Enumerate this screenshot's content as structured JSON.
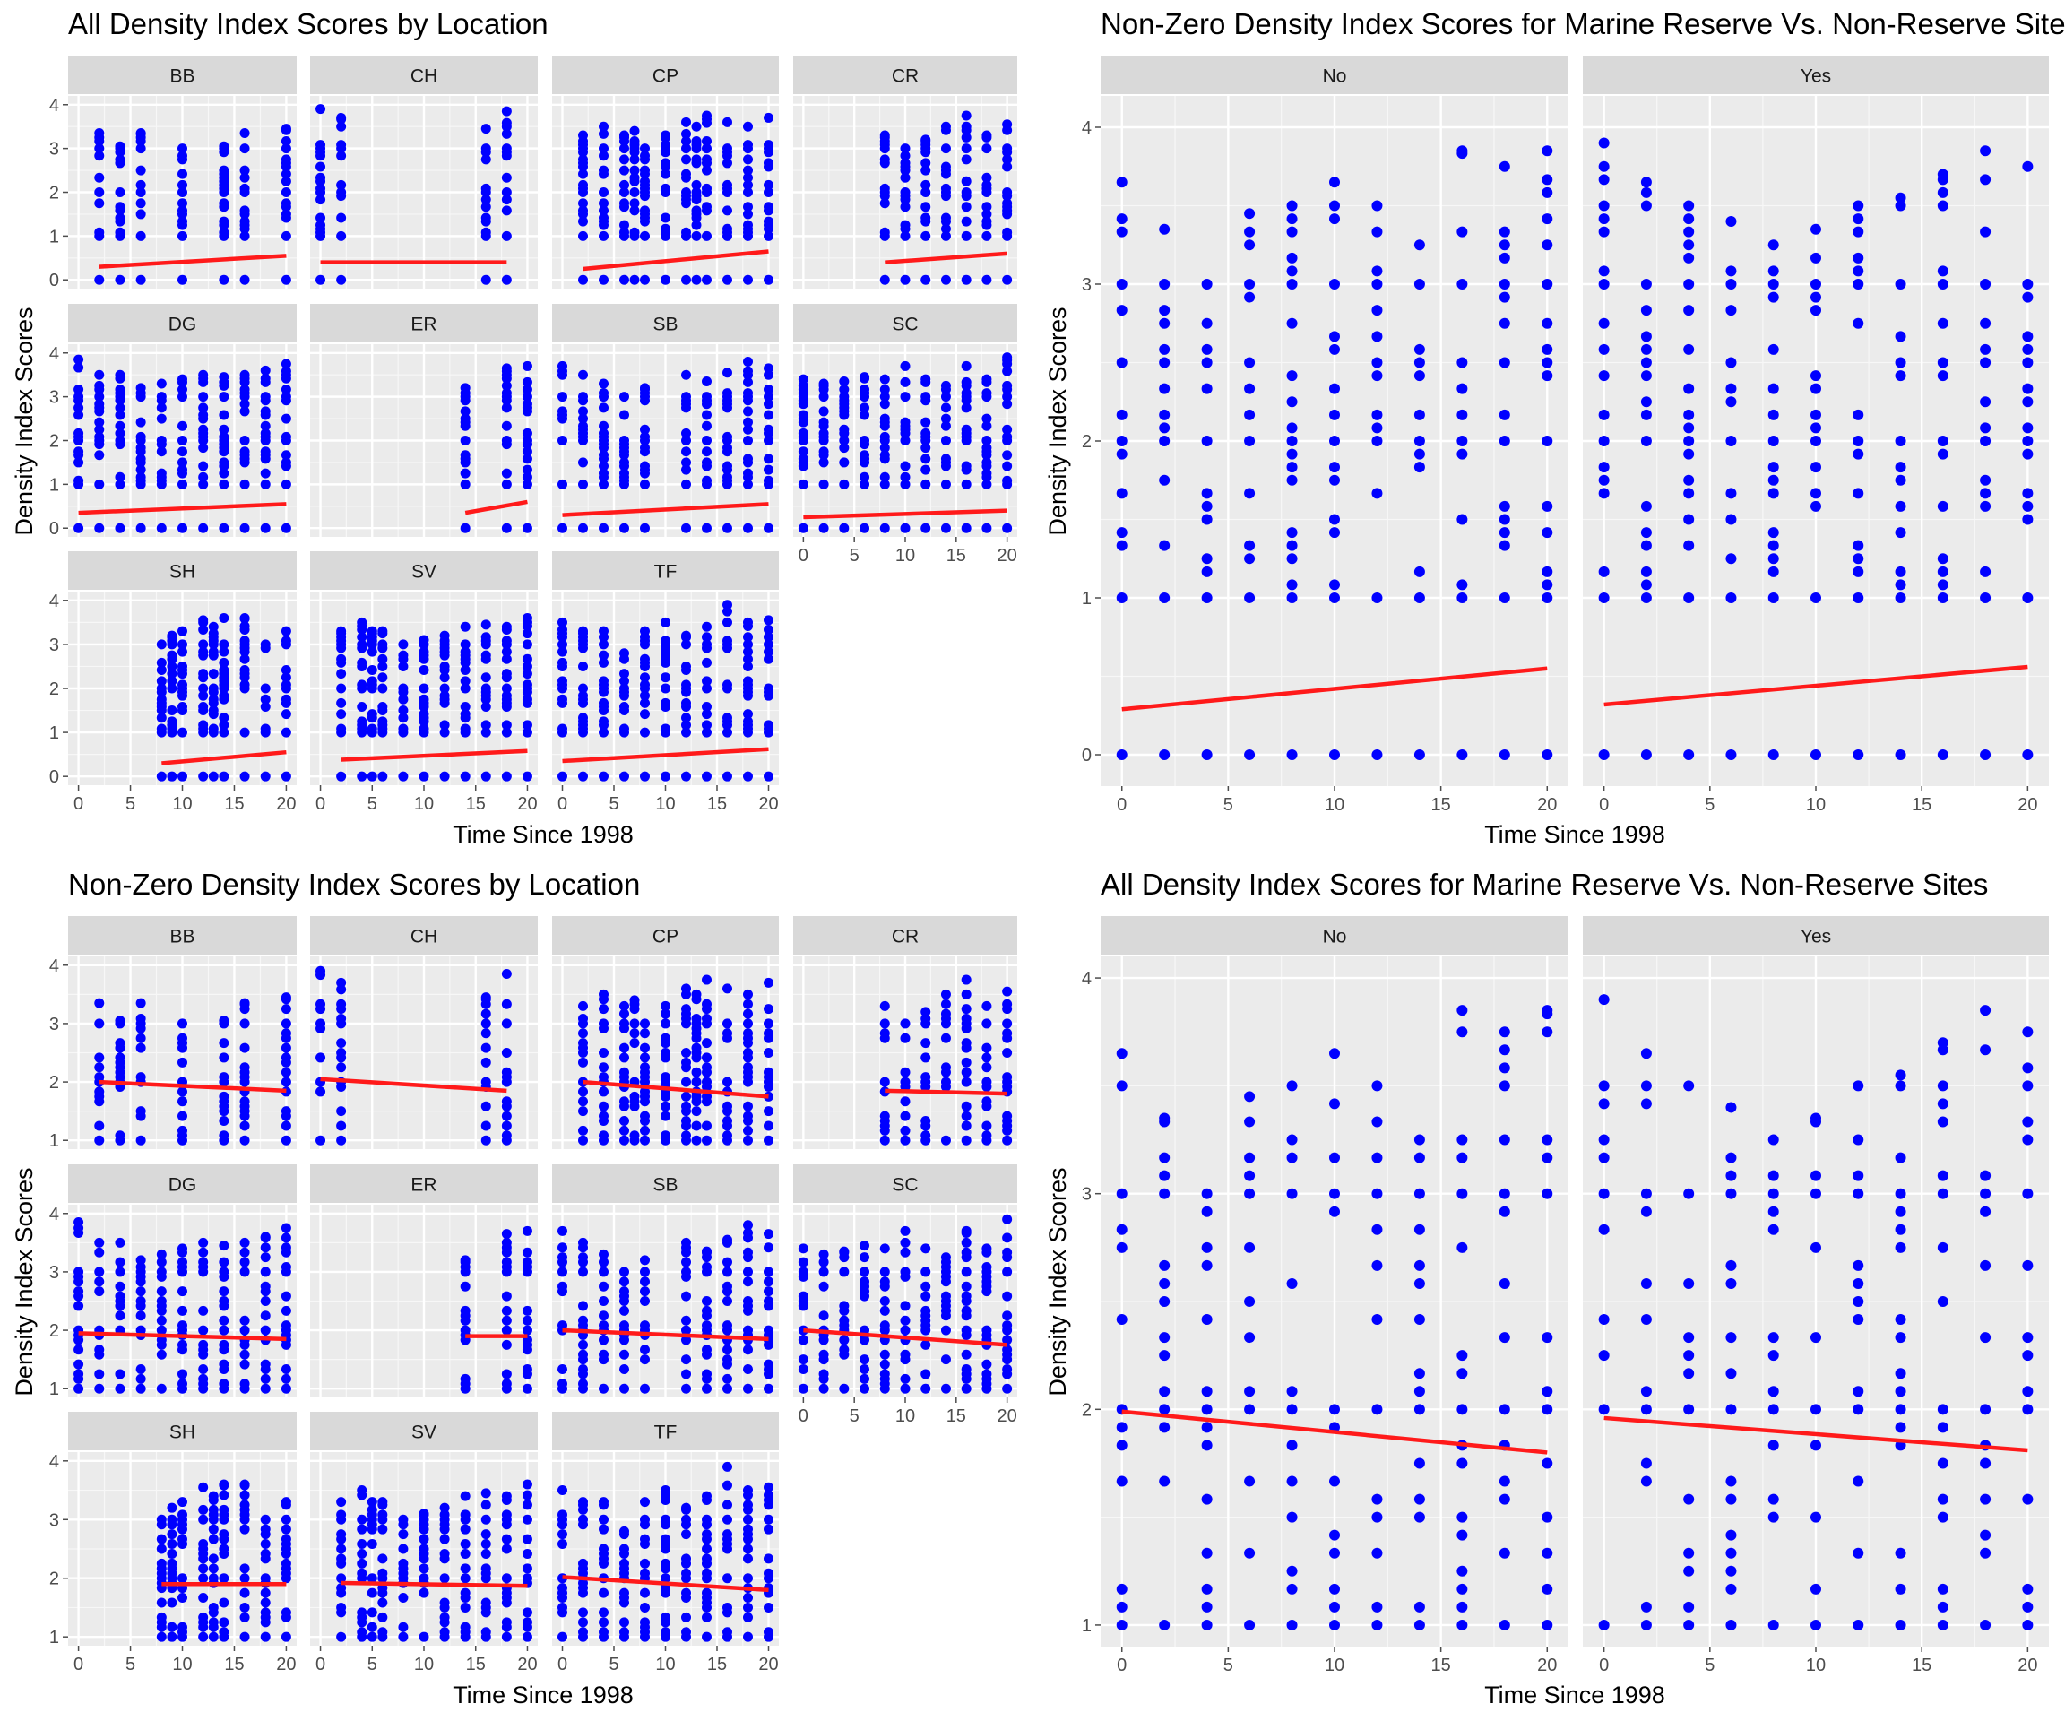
{
  "colors": {
    "panel_bg": "#ebebeb",
    "strip_bg": "#d9d9d9",
    "grid_major": "#ffffff",
    "point": "#0000ff",
    "trend": "#ff1a1a",
    "tick": "#4d4d4d"
  },
  "chart_data": [
    {
      "type": "scatter",
      "title": "All Density Index Scores by Location",
      "xlabel": "Time Since 1998",
      "ylabel": "Density Index Scores",
      "xlim": [
        -1,
        21
      ],
      "ylim": [
        -0.2,
        4.2
      ],
      "x_ticks": [
        0,
        5,
        10,
        15,
        20
      ],
      "y_ticks": [
        0,
        1,
        2,
        3,
        4
      ],
      "facets": [
        {
          "name": "BB",
          "times": [
            2,
            4,
            6,
            10,
            14,
            16,
            20
          ],
          "ymax": [
            3.35,
            3.05,
            3.35,
            3.0,
            3.05,
            3.35,
            3.45
          ],
          "ymin": 1.0,
          "trend": [
            [
              2,
              0.3
            ],
            [
              20,
              0.55
            ]
          ]
        },
        {
          "name": "CH",
          "times": [
            0,
            2,
            16,
            18
          ],
          "ymax": [
            3.9,
            3.7,
            3.45,
            3.85
          ],
          "ymin": 1.0,
          "trend": [
            [
              0,
              0.4
            ],
            [
              18,
              0.4
            ]
          ]
        },
        {
          "name": "CP",
          "times": [
            2,
            4,
            6,
            7,
            8,
            10,
            12,
            13,
            14,
            16,
            18,
            20
          ],
          "ymax": [
            3.3,
            3.5,
            3.3,
            3.4,
            3.0,
            3.3,
            3.6,
            3.5,
            3.75,
            3.6,
            3.5,
            3.7
          ],
          "ymin": 1.0,
          "trend": [
            [
              2,
              0.25
            ],
            [
              20,
              0.65
            ]
          ]
        },
        {
          "name": "CR",
          "times": [
            8,
            10,
            12,
            14,
            16,
            18,
            20
          ],
          "ymax": [
            3.3,
            3.0,
            3.2,
            3.5,
            3.75,
            3.3,
            3.55
          ],
          "ymin": 1.0,
          "trend": [
            [
              8,
              0.4
            ],
            [
              20,
              0.6
            ]
          ]
        },
        {
          "name": "DG",
          "times": [
            0,
            2,
            4,
            6,
            8,
            10,
            12,
            14,
            16,
            18,
            20
          ],
          "ymax": [
            3.85,
            3.5,
            3.5,
            3.2,
            3.3,
            3.4,
            3.5,
            3.45,
            3.5,
            3.6,
            3.75
          ],
          "ymin": 1.0,
          "trend": [
            [
              0,
              0.35
            ],
            [
              20,
              0.55
            ]
          ]
        },
        {
          "name": "ER",
          "times": [
            14,
            18,
            20
          ],
          "ymax": [
            3.2,
            3.65,
            3.7
          ],
          "ymin": 1.0,
          "trend": [
            [
              14,
              0.35
            ],
            [
              20,
              0.6
            ]
          ]
        },
        {
          "name": "SB",
          "times": [
            0,
            2,
            4,
            6,
            8,
            12,
            14,
            16,
            18,
            20
          ],
          "ymax": [
            3.7,
            3.5,
            3.3,
            3.0,
            3.2,
            3.5,
            3.35,
            3.55,
            3.8,
            3.65
          ],
          "ymin": 1.0,
          "trend": [
            [
              0,
              0.3
            ],
            [
              20,
              0.55
            ]
          ]
        },
        {
          "name": "SC",
          "times": [
            0,
            2,
            4,
            6,
            8,
            10,
            12,
            14,
            16,
            18,
            20
          ],
          "ymax": [
            3.4,
            3.3,
            3.35,
            3.45,
            3.4,
            3.7,
            3.4,
            3.25,
            3.7,
            3.4,
            3.9
          ],
          "ymin": 1.0,
          "trend": [
            [
              0,
              0.25
            ],
            [
              20,
              0.4
            ]
          ]
        },
        {
          "name": "SH",
          "times": [
            8,
            9,
            10,
            12,
            13,
            14,
            16,
            18,
            20
          ],
          "ymax": [
            3.0,
            3.2,
            3.3,
            3.55,
            3.4,
            3.6,
            3.6,
            3.0,
            3.3
          ],
          "ymin": 1.0,
          "trend": [
            [
              8,
              0.3
            ],
            [
              20,
              0.55
            ]
          ]
        },
        {
          "name": "SV",
          "times": [
            2,
            4,
            5,
            6,
            8,
            10,
            12,
            14,
            16,
            18,
            20
          ],
          "ymax": [
            3.3,
            3.5,
            3.3,
            3.3,
            3.0,
            3.1,
            3.2,
            3.4,
            3.45,
            3.4,
            3.6
          ],
          "ymin": 1.0,
          "trend": [
            [
              2,
              0.38
            ],
            [
              20,
              0.58
            ]
          ]
        },
        {
          "name": "TF",
          "times": [
            0,
            2,
            4,
            6,
            8,
            10,
            12,
            14,
            16,
            18,
            20
          ],
          "ymax": [
            3.5,
            3.3,
            3.3,
            2.8,
            3.3,
            3.5,
            3.2,
            3.4,
            3.9,
            3.5,
            3.55
          ],
          "ymin": 1.0,
          "trend": [
            [
              0,
              0.35
            ],
            [
              20,
              0.62
            ]
          ]
        }
      ]
    },
    {
      "type": "scatter",
      "title": "Non-Zero Density Index Scores for Marine Reserve Vs. Non-Reserve Sites",
      "xlabel": "Time Since 1998",
      "ylabel": "Density Index Scores",
      "xlim": [
        -1,
        21
      ],
      "ylim": [
        -0.2,
        4.2
      ],
      "x_ticks": [
        0,
        5,
        10,
        15,
        20
      ],
      "y_ticks": [
        0,
        1,
        2,
        3,
        4
      ],
      "facets": [
        {
          "name": "No",
          "times": [
            0,
            2,
            4,
            6,
            8,
            10,
            12,
            14,
            16,
            18,
            20
          ],
          "ymax": [
            3.65,
            3.35,
            3.0,
            3.45,
            3.5,
            3.65,
            3.5,
            3.25,
            3.85,
            3.75,
            3.85
          ],
          "ymin": 1.0,
          "trend": [
            [
              0,
              0.29
            ],
            [
              20,
              0.55
            ]
          ]
        },
        {
          "name": "Yes",
          "times": [
            0,
            2,
            4,
            6,
            8,
            10,
            12,
            14,
            16,
            18,
            20
          ],
          "ymax": [
            3.9,
            3.65,
            3.5,
            3.4,
            3.25,
            3.35,
            3.5,
            3.55,
            3.7,
            3.85,
            3.75
          ],
          "ymin": 1.0,
          "trend": [
            [
              0,
              0.32
            ],
            [
              20,
              0.56
            ]
          ]
        }
      ]
    },
    {
      "type": "scatter",
      "title": "Non-Zero Density Index Scores by Location",
      "xlabel": "Time Since 1998",
      "ylabel": "Density Index Scores",
      "xlim": [
        -1,
        21
      ],
      "ylim": [
        0.85,
        4.15
      ],
      "x_ticks": [
        0,
        5,
        10,
        15,
        20
      ],
      "y_ticks": [
        1,
        2,
        3,
        4
      ],
      "facets": [
        {
          "name": "BB",
          "times": [
            2,
            4,
            6,
            10,
            14,
            16,
            20
          ],
          "ymax": [
            3.35,
            3.05,
            3.35,
            3.0,
            3.05,
            3.35,
            3.45
          ],
          "ymin": 1.0,
          "trend": [
            [
              2,
              2.0
            ],
            [
              20,
              1.85
            ]
          ]
        },
        {
          "name": "CH",
          "times": [
            0,
            2,
            16,
            18
          ],
          "ymax": [
            3.9,
            3.7,
            3.45,
            3.85
          ],
          "ymin": 1.0,
          "trend": [
            [
              0,
              2.05
            ],
            [
              18,
              1.85
            ]
          ]
        },
        {
          "name": "CP",
          "times": [
            2,
            4,
            6,
            7,
            8,
            10,
            12,
            13,
            14,
            16,
            18,
            20
          ],
          "ymax": [
            3.3,
            3.5,
            3.3,
            3.4,
            3.0,
            3.3,
            3.6,
            3.5,
            3.75,
            3.6,
            3.5,
            3.7
          ],
          "ymin": 1.0,
          "trend": [
            [
              2,
              2.0
            ],
            [
              20,
              1.75
            ]
          ]
        },
        {
          "name": "CR",
          "times": [
            8,
            10,
            12,
            14,
            16,
            18,
            20
          ],
          "ymax": [
            3.3,
            3.0,
            3.2,
            3.5,
            3.75,
            3.3,
            3.55
          ],
          "ymin": 1.0,
          "trend": [
            [
              8,
              1.85
            ],
            [
              20,
              1.8
            ]
          ]
        },
        {
          "name": "DG",
          "times": [
            0,
            2,
            4,
            6,
            8,
            10,
            12,
            14,
            16,
            18,
            20
          ],
          "ymax": [
            3.85,
            3.5,
            3.5,
            3.2,
            3.3,
            3.4,
            3.5,
            3.45,
            3.5,
            3.6,
            3.75
          ],
          "ymin": 1.0,
          "trend": [
            [
              0,
              1.95
            ],
            [
              20,
              1.85
            ]
          ]
        },
        {
          "name": "ER",
          "times": [
            14,
            18,
            20
          ],
          "ymax": [
            3.2,
            3.65,
            3.7
          ],
          "ymin": 1.0,
          "trend": [
            [
              14,
              1.9
            ],
            [
              20,
              1.9
            ]
          ]
        },
        {
          "name": "SB",
          "times": [
            0,
            2,
            4,
            6,
            8,
            12,
            14,
            16,
            18,
            20
          ],
          "ymax": [
            3.7,
            3.5,
            3.3,
            3.0,
            3.2,
            3.5,
            3.35,
            3.55,
            3.8,
            3.65
          ],
          "ymin": 1.0,
          "trend": [
            [
              0,
              2.0
            ],
            [
              20,
              1.85
            ]
          ]
        },
        {
          "name": "SC",
          "times": [
            0,
            2,
            4,
            6,
            8,
            10,
            12,
            14,
            16,
            18,
            20
          ],
          "ymax": [
            3.4,
            3.3,
            3.35,
            3.45,
            3.4,
            3.7,
            3.4,
            3.25,
            3.7,
            3.4,
            3.9
          ],
          "ymin": 1.0,
          "trend": [
            [
              0,
              2.0
            ],
            [
              20,
              1.75
            ]
          ]
        },
        {
          "name": "SH",
          "times": [
            8,
            9,
            10,
            12,
            13,
            14,
            16,
            18,
            20
          ],
          "ymax": [
            3.0,
            3.2,
            3.3,
            3.55,
            3.4,
            3.6,
            3.6,
            3.0,
            3.3
          ],
          "ymin": 1.0,
          "trend": [
            [
              8,
              1.9
            ],
            [
              20,
              1.9
            ]
          ]
        },
        {
          "name": "SV",
          "times": [
            2,
            4,
            5,
            6,
            8,
            10,
            12,
            14,
            16,
            18,
            20
          ],
          "ymax": [
            3.3,
            3.5,
            3.3,
            3.3,
            3.0,
            3.1,
            3.2,
            3.4,
            3.45,
            3.4,
            3.6
          ],
          "ymin": 1.0,
          "trend": [
            [
              2,
              1.92
            ],
            [
              20,
              1.87
            ]
          ]
        },
        {
          "name": "TF",
          "times": [
            0,
            2,
            4,
            6,
            8,
            10,
            12,
            14,
            16,
            18,
            20
          ],
          "ymax": [
            3.5,
            3.3,
            3.3,
            2.8,
            3.3,
            3.5,
            3.2,
            3.4,
            3.9,
            3.5,
            3.55
          ],
          "ymin": 1.0,
          "trend": [
            [
              0,
              2.02
            ],
            [
              20,
              1.8
            ]
          ]
        }
      ]
    },
    {
      "type": "scatter",
      "title": "All Density Index Scores for Marine Reserve Vs. Non-Reserve Sites",
      "xlabel": "Time Since 1998",
      "ylabel": "Density Index Scores",
      "xlim": [
        -1,
        21
      ],
      "ylim": [
        0.9,
        4.1
      ],
      "x_ticks": [
        0,
        5,
        10,
        15,
        20
      ],
      "y_ticks": [
        1,
        2,
        3,
        4
      ],
      "facets": [
        {
          "name": "No",
          "times": [
            0,
            2,
            4,
            6,
            8,
            10,
            12,
            14,
            16,
            18,
            20
          ],
          "ymax": [
            3.65,
            3.35,
            3.0,
            3.45,
            3.5,
            3.65,
            3.5,
            3.25,
            3.85,
            3.75,
            3.85
          ],
          "ymin": 1.0,
          "trend": [
            [
              0,
              1.99
            ],
            [
              20,
              1.8
            ]
          ]
        },
        {
          "name": "Yes",
          "times": [
            0,
            2,
            4,
            6,
            8,
            10,
            12,
            14,
            16,
            18,
            20
          ],
          "ymax": [
            3.9,
            3.65,
            3.5,
            3.4,
            3.25,
            3.35,
            3.5,
            3.55,
            3.7,
            3.85,
            3.75
          ],
          "ymin": 1.0,
          "trend": [
            [
              0,
              1.96
            ],
            [
              20,
              1.81
            ]
          ]
        }
      ]
    }
  ]
}
